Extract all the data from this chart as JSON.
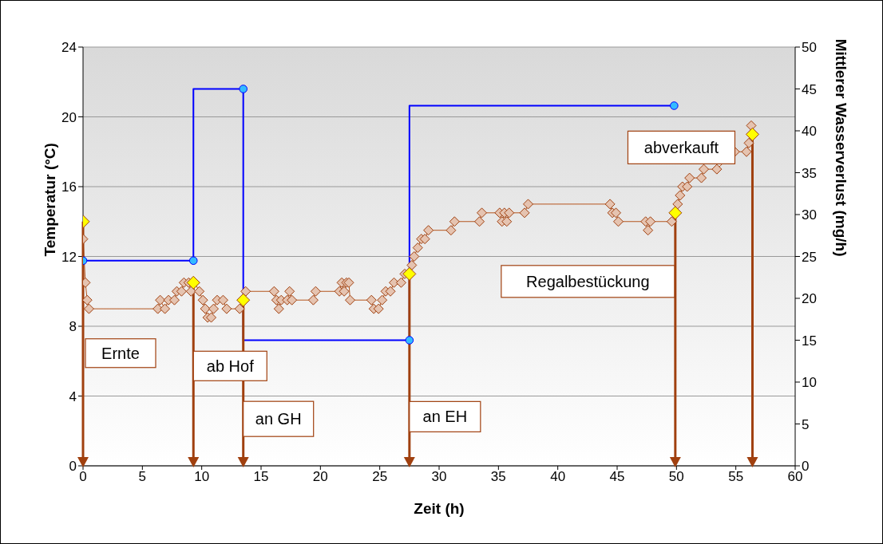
{
  "chart_data": {
    "type": "line",
    "xlabel": "Zeit (h)",
    "ylabel": "Temperatur (°C)",
    "y2label": "Mittlerer Wasserverlust (mg/h)",
    "xlim": [
      0,
      60
    ],
    "xticks": [
      0,
      5,
      10,
      15,
      20,
      25,
      30,
      35,
      40,
      45,
      50,
      55,
      60
    ],
    "ylim": [
      0,
      24
    ],
    "yticks": [
      0,
      4,
      8,
      12,
      16,
      20,
      24
    ],
    "y2lim": [
      0,
      50
    ],
    "y2ticks": [
      0,
      5,
      10,
      15,
      20,
      25,
      30,
      35,
      40,
      45,
      50
    ],
    "grid": "y",
    "legend": false,
    "series": [
      {
        "type": "line",
        "color": "#b5541c",
        "marker": "diamond",
        "x": [
          0,
          0.2,
          0.35,
          0.5,
          6.3,
          6.5,
          6.9,
          7.2,
          7.7,
          7.9,
          8.3,
          8.5,
          8.9,
          9.1,
          9.4,
          9.8,
          10.1,
          10.3,
          10.5,
          10.8,
          11.0,
          11.3,
          11.8,
          12.1,
          13.2,
          13.4,
          13.7,
          16.1,
          16.3,
          16.5,
          16.7,
          17.2,
          17.4,
          17.6,
          19.4,
          19.6,
          21.6,
          21.8,
          22.0,
          22.2,
          22.4,
          22.5,
          24.3,
          24.5,
          24.9,
          25.2,
          25.5,
          25.9,
          26.2,
          26.8,
          27.1,
          27.7,
          27.9,
          28.2,
          28.5,
          28.8,
          29.1,
          31.0,
          31.3,
          33.4,
          33.6,
          35.1,
          35.3,
          35.5,
          35.7,
          35.9,
          37.2,
          37.5,
          44.4,
          44.6,
          44.9,
          45.1,
          47.4,
          47.6,
          47.8,
          49.6,
          50.1,
          50.3,
          50.5,
          50.9,
          51.1,
          52.1,
          52.3,
          53.4,
          54.9,
          55.9,
          56.1,
          56.3
        ],
        "values": [
          13,
          10.5,
          9.5,
          9,
          9,
          9.5,
          9,
          9.5,
          9.5,
          10,
          10,
          10.5,
          10.5,
          10,
          10.5,
          10,
          9.5,
          9,
          8.5,
          8.5,
          9,
          9.5,
          9.5,
          9,
          9,
          9.5,
          10,
          10,
          9.5,
          9,
          9.5,
          9.5,
          10,
          9.5,
          9.5,
          10,
          10,
          10.5,
          10,
          10.5,
          10.5,
          9.5,
          9.5,
          9,
          9,
          9.5,
          10,
          10,
          10.5,
          10.5,
          11,
          11.5,
          12,
          12.5,
          13,
          13,
          13.5,
          13.5,
          14,
          14,
          14.5,
          14.5,
          14,
          14.5,
          14,
          14.5,
          14.5,
          15,
          15,
          14.5,
          14.5,
          14,
          14,
          13.5,
          14,
          14,
          15,
          15.5,
          16,
          16,
          16.5,
          16.5,
          17,
          17,
          18,
          18,
          18.5,
          19.5
        ]
      },
      {
        "type": "scatter",
        "color": "#ffff00",
        "marker": "diamond",
        "x": [
          0,
          9.3,
          13.5,
          27.5,
          49.9,
          56.4
        ],
        "values": [
          14,
          10.5,
          9.5,
          11,
          14.5,
          19
        ]
      },
      {
        "type": "step",
        "axis": "y2",
        "color": "#0000ff",
        "marker": "circle",
        "x": [
          0,
          9.3,
          13.5,
          27.5,
          49.8
        ],
        "values": [
          24.5,
          24.5,
          45,
          15,
          43
        ]
      }
    ],
    "annotations": [
      "Ernte",
      "ab Hof",
      "an GH",
      "an EH",
      "Regalbestückung",
      "abverkauft"
    ]
  }
}
